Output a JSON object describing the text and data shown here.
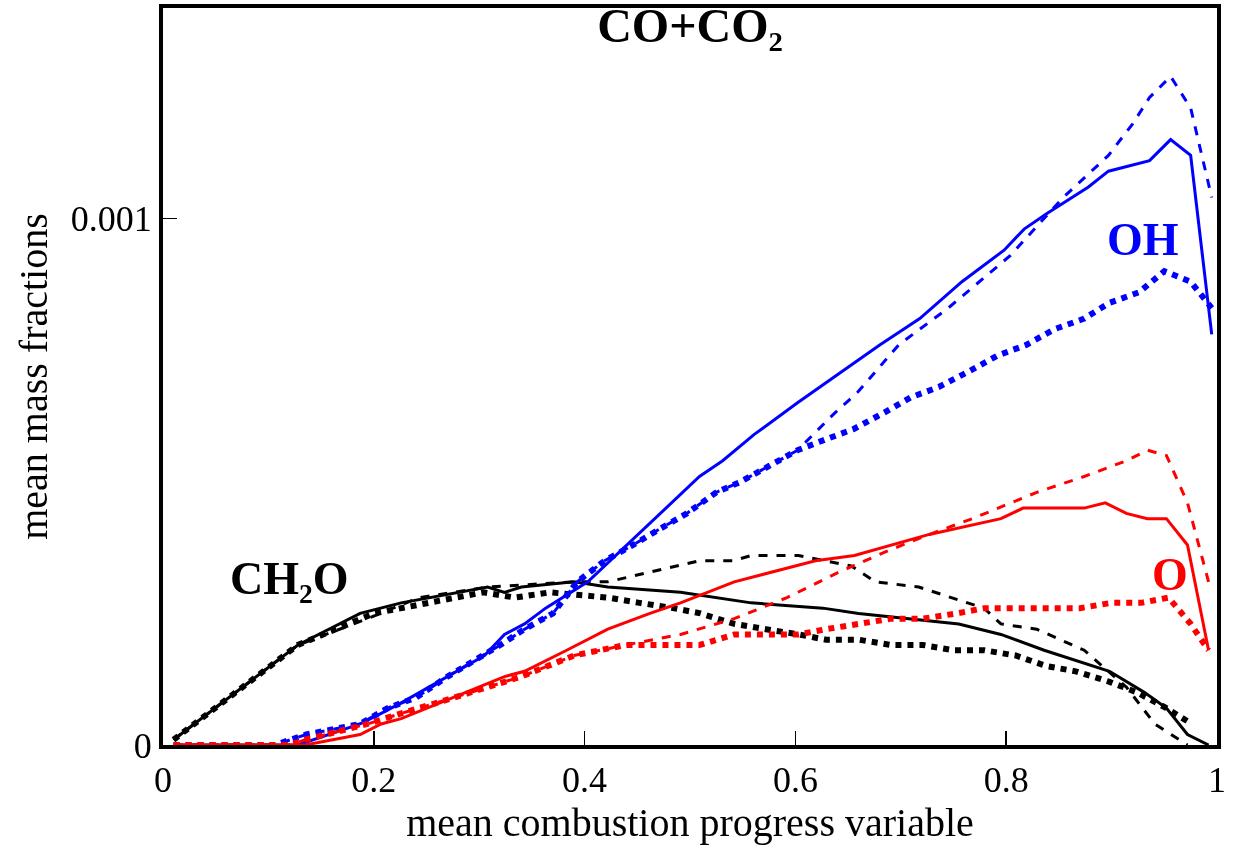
{
  "chart_data": {
    "type": "line",
    "title": "CO+CO₂",
    "xlabel": "mean combustion progress variable",
    "ylabel": "mean mass fractions",
    "xlim": [
      0,
      1
    ],
    "ylim": [
      0,
      0.0014
    ],
    "xticks": [
      0,
      0.2,
      0.4,
      0.6,
      0.8,
      1
    ],
    "yticks": [
      0,
      0.001
    ],
    "series": [
      {
        "name": "CH₂O",
        "color": "#000000",
        "line_style": "solid",
        "x": [
          0.01,
          0.128,
          0.187,
          0.226,
          0.308,
          0.324,
          0.34,
          0.39,
          0.422,
          0.491,
          0.558,
          0.626,
          0.66,
          0.755,
          0.795,
          0.836,
          0.898,
          0.931,
          0.952,
          0.972,
          0.992
        ],
        "values": [
          1e-05,
          0.00019,
          0.00025,
          0.00027,
          0.0003,
          0.00029,
          0.0003,
          0.00031,
          0.0003,
          0.00029,
          0.00027,
          0.00026,
          0.00025,
          0.00023,
          0.00021,
          0.00018,
          0.00014,
          0.0001,
          7e-05,
          2e-05,
          0
        ]
      },
      {
        "color": "#000000",
        "line_style": "dashed",
        "x": [
          0.01,
          0.128,
          0.194,
          0.243,
          0.308,
          0.39,
          0.422,
          0.509,
          0.541,
          0.558,
          0.603,
          0.653,
          0.676,
          0.717,
          0.779,
          0.795,
          0.829,
          0.874,
          0.914,
          0.941,
          0.972
        ],
        "values": [
          1e-05,
          0.00019,
          0.00024,
          0.00028,
          0.0003,
          0.00031,
          0.00031,
          0.00035,
          0.00035,
          0.00036,
          0.00036,
          0.00034,
          0.00031,
          0.0003,
          0.00026,
          0.00023,
          0.00022,
          0.00018,
          0.00011,
          4e-05,
          0
        ]
      },
      {
        "color": "#000000",
        "line_style": "dotted",
        "x": [
          0.01,
          0.128,
          0.2,
          0.304,
          0.334,
          0.367,
          0.422,
          0.452,
          0.484,
          0.51,
          0.542,
          0.572,
          0.603,
          0.629,
          0.66,
          0.691,
          0.721,
          0.75,
          0.779,
          0.809,
          0.838,
          0.866,
          0.898,
          0.924,
          0.952,
          0.976
        ],
        "values": [
          1e-05,
          0.00019,
          0.00025,
          0.00029,
          0.00028,
          0.00029,
          0.00028,
          0.00027,
          0.00026,
          0.00025,
          0.00023,
          0.00022,
          0.00021,
          0.0002,
          0.0002,
          0.00019,
          0.00019,
          0.00018,
          0.00018,
          0.00017,
          0.00015,
          0.00014,
          0.00012,
          0.0001,
          7e-05,
          4e-05
        ]
      },
      {
        "name": "OH",
        "color": "#0000ff",
        "line_style": "solid",
        "x": [
          0.01,
          0.1,
          0.128,
          0.187,
          0.207,
          0.226,
          0.305,
          0.324,
          0.343,
          0.363,
          0.403,
          0.509,
          0.531,
          0.561,
          0.602,
          0.68,
          0.718,
          0.758,
          0.798,
          0.817,
          0.839,
          0.878,
          0.897,
          0.936,
          0.956,
          0.975,
          0.995
        ],
        "values": [
          0,
          0,
          0,
          4e-05,
          6e-05,
          8e-05,
          0.00017,
          0.00021,
          0.00023,
          0.00026,
          0.00031,
          0.00051,
          0.00054,
          0.00059,
          0.00065,
          0.00076,
          0.00081,
          0.00088,
          0.00094,
          0.00098,
          0.00101,
          0.00106,
          0.00109,
          0.00111,
          0.00115,
          0.00112,
          0.00078
        ]
      },
      {
        "color": "#0000ff",
        "line_style": "dashed",
        "x": [
          0.01,
          0.1,
          0.106,
          0.136,
          0.187,
          0.213,
          0.24,
          0.27,
          0.295,
          0.32,
          0.343,
          0.37,
          0.393,
          0.419,
          0.446,
          0.471,
          0.497,
          0.525,
          0.548,
          0.575,
          0.602,
          0.637,
          0.659,
          0.698,
          0.745,
          0.804,
          0.854,
          0.897,
          0.92,
          0.936,
          0.956,
          0.975,
          0.995
        ],
        "values": [
          0,
          0,
          0,
          2e-05,
          4e-05,
          7e-05,
          9e-05,
          0.00013,
          0.00016,
          0.00019,
          0.00022,
          0.00025,
          0.00031,
          0.00035,
          0.00038,
          0.00041,
          0.00044,
          0.00048,
          0.0005,
          0.00053,
          0.00056,
          0.00063,
          0.00067,
          0.00076,
          0.00083,
          0.00093,
          0.00104,
          0.00112,
          0.00118,
          0.00123,
          0.00127,
          0.00121,
          0.00104
        ]
      },
      {
        "color": "#0000ff",
        "line_style": "dotted",
        "x": [
          0.01,
          0.1,
          0.106,
          0.136,
          0.187,
          0.213,
          0.24,
          0.27,
          0.295,
          0.32,
          0.343,
          0.37,
          0.393,
          0.419,
          0.446,
          0.471,
          0.497,
          0.525,
          0.548,
          0.575,
          0.602,
          0.628,
          0.655,
          0.683,
          0.709,
          0.736,
          0.765,
          0.792,
          0.819,
          0.846,
          0.874,
          0.898,
          0.926,
          0.95,
          0.975,
          0.995
        ],
        "values": [
          0,
          0,
          0,
          2e-05,
          4e-05,
          7e-05,
          9e-05,
          0.00013,
          0.00016,
          0.00019,
          0.00022,
          0.00025,
          0.00031,
          0.00035,
          0.00038,
          0.00041,
          0.00044,
          0.00048,
          0.0005,
          0.00053,
          0.00056,
          0.00058,
          0.0006,
          0.00063,
          0.00066,
          0.00068,
          0.00071,
          0.00074,
          0.00076,
          0.00079,
          0.00081,
          0.00084,
          0.00086,
          0.0009,
          0.00088,
          0.00083
        ]
      },
      {
        "name": "O",
        "color": "#ff0000",
        "line_style": "solid",
        "x": [
          0.01,
          0.12,
          0.135,
          0.187,
          0.207,
          0.226,
          0.324,
          0.343,
          0.383,
          0.422,
          0.462,
          0.491,
          0.542,
          0.619,
          0.656,
          0.727,
          0.795,
          0.816,
          0.836,
          0.874,
          0.894,
          0.914,
          0.934,
          0.952,
          0.972,
          0.992
        ],
        "values": [
          0,
          0,
          0,
          2e-05,
          4e-05,
          5e-05,
          0.00013,
          0.00014,
          0.00018,
          0.00022,
          0.00025,
          0.00027,
          0.00031,
          0.00035,
          0.00036,
          0.0004,
          0.00043,
          0.00045,
          0.00045,
          0.00045,
          0.00046,
          0.00044,
          0.00043,
          0.00043,
          0.00038,
          0.00018
        ]
      },
      {
        "color": "#ff0000",
        "line_style": "dashed",
        "x": [
          0.01,
          0.12,
          0.135,
          0.194,
          0.226,
          0.276,
          0.308,
          0.34,
          0.39,
          0.439,
          0.491,
          0.542,
          0.592,
          0.643,
          0.689,
          0.727,
          0.768,
          0.829,
          0.874,
          0.914,
          0.934,
          0.952,
          0.972,
          0.992
        ],
        "values": [
          0,
          0,
          1e-05,
          4e-05,
          6e-05,
          9e-05,
          0.00011,
          0.00013,
          0.00017,
          0.00019,
          0.00021,
          0.00024,
          0.00028,
          0.00033,
          0.00037,
          0.0004,
          0.00043,
          0.00048,
          0.00051,
          0.00054,
          0.00056,
          0.00055,
          0.00046,
          0.00031
        ]
      },
      {
        "color": "#ff0000",
        "line_style": "dotted",
        "x": [
          0.01,
          0.12,
          0.135,
          0.194,
          0.226,
          0.276,
          0.308,
          0.34,
          0.39,
          0.439,
          0.509,
          0.542,
          0.572,
          0.603,
          0.629,
          0.66,
          0.691,
          0.721,
          0.753,
          0.78,
          0.811,
          0.842,
          0.87,
          0.9,
          0.928,
          0.954,
          0.975,
          0.992
        ],
        "values": [
          0,
          0,
          1e-05,
          4e-05,
          6e-05,
          9e-05,
          0.00011,
          0.00013,
          0.00017,
          0.00019,
          0.00019,
          0.00021,
          0.00021,
          0.00021,
          0.00022,
          0.00023,
          0.00024,
          0.00024,
          0.00025,
          0.00026,
          0.00026,
          0.00026,
          0.00026,
          0.00027,
          0.00027,
          0.00028,
          0.00023,
          0.00018
        ]
      }
    ]
  }
}
